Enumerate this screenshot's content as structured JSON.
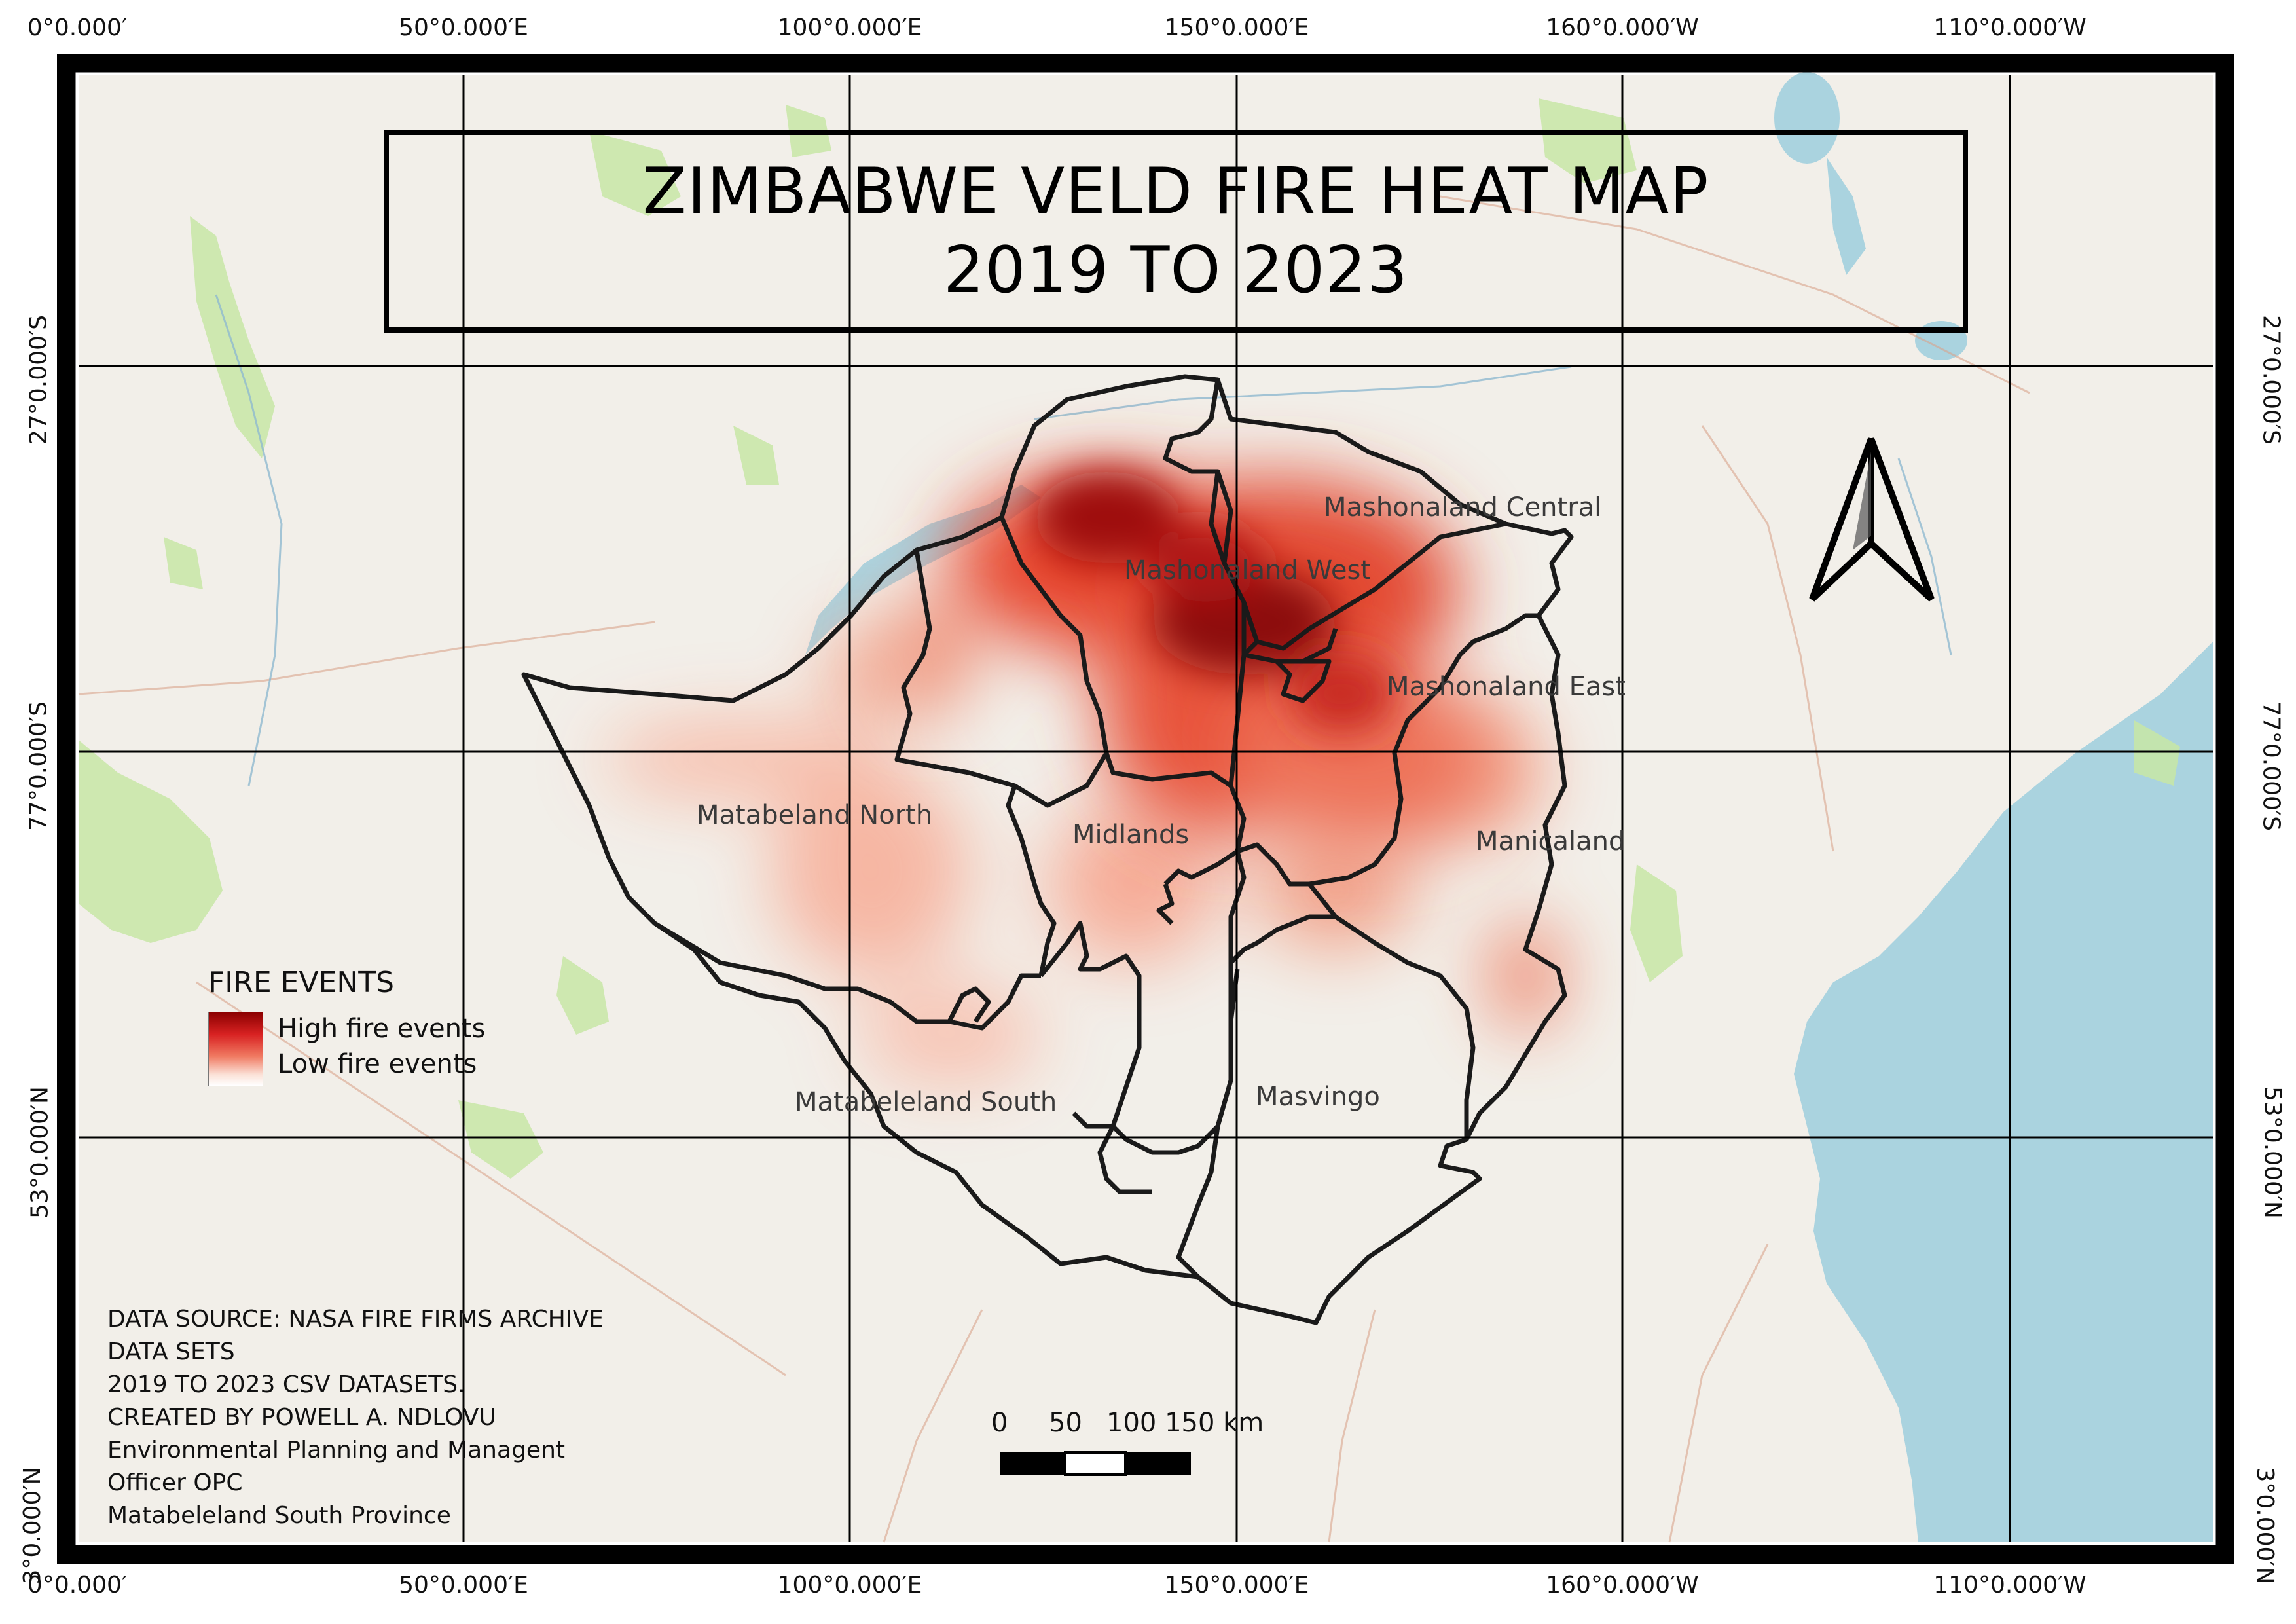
{
  "title": {
    "line1": "ZIMBABWE VELD FIRE HEAT MAP",
    "line2": "2019 TO 2023"
  },
  "grid_labels": {
    "top": [
      "0°0.000′",
      "50°0.000′E",
      "100°0.000′E",
      "150°0.000′E",
      "160°0.000′W",
      "110°0.000′W"
    ],
    "bottom": [
      "0°0.000′",
      "50°0.000′E",
      "100°0.000′E",
      "150°0.000′E",
      "160°0.000′W",
      "110°0.000′W"
    ],
    "left": [
      "27°0.000′S",
      "77°0.000′S",
      "53°0.000′N",
      "3°0.000′N"
    ],
    "right": [
      "27°0.000′S",
      "77°0.000′S",
      "53°0.000′N",
      "3°0.000′N"
    ]
  },
  "provinces": {
    "mashonaland_central": "Mashonaland Central",
    "mashonaland_west": "Mashonaland West",
    "mashonaland_east": "Mashonaland East",
    "matabeland_north": "Matabeland North",
    "midlands": "Midlands",
    "manicaland": "Manicaland",
    "matabeleland_south": "Matabeleland South",
    "masvingo": "Masvingo"
  },
  "legend": {
    "title": "FIRE EVENTS",
    "high": "High fire events",
    "low": "Low fire events",
    "colors": {
      "high": "#8c0000",
      "mid": "#e0302a",
      "low": "#ffffff"
    }
  },
  "credits": [
    "DATA SOURCE: NASA FIRE FIRMS ARCHIVE",
    "DATA SETS",
    "2019 TO 2023 CSV DATASETS.",
    "CREATED BY POWELL A. NDLOVU",
    "Environmental Planning and Managent",
    "Officer OPC",
    "Matabeleland South Province"
  ],
  "scale_bar": {
    "labels": [
      "0",
      "50",
      "100 150 km"
    ]
  },
  "north_arrow_icon": "north-arrow-icon",
  "colors": {
    "land": "#f2efe9",
    "water": "#aad3df",
    "park": "#c8e6a6",
    "boundary": "#1a1a1a",
    "frame": "#000000"
  }
}
